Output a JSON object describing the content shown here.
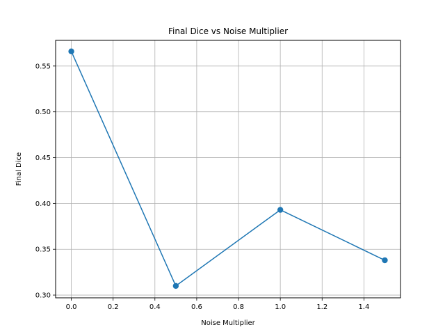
{
  "chart_data": {
    "type": "line",
    "title": "Final Dice vs Noise Multiplier",
    "xlabel": "Noise Multiplier",
    "ylabel": "Final Dice",
    "x": [
      0.0,
      0.5,
      1.0,
      1.5
    ],
    "series": [
      {
        "values": [
          0.566,
          0.31,
          0.393,
          0.338
        ],
        "color": "#1f77b4",
        "marker": "circle"
      }
    ],
    "xlim": [
      -0.075,
      1.575
    ],
    "ylim": [
      0.297,
      0.578
    ],
    "xticks": [
      0.0,
      0.2,
      0.4,
      0.6,
      0.8,
      1.0,
      1.2,
      1.4
    ],
    "xtick_labels": [
      "0.0",
      "0.2",
      "0.4",
      "0.6",
      "0.8",
      "1.0",
      "1.2",
      "1.4"
    ],
    "yticks": [
      0.3,
      0.35,
      0.4,
      0.45,
      0.5,
      0.55
    ],
    "ytick_labels": [
      "0.30",
      "0.35",
      "0.40",
      "0.45",
      "0.50",
      "0.55"
    ],
    "grid": true,
    "grid_color": "#b0b0b0",
    "legend": "none"
  }
}
